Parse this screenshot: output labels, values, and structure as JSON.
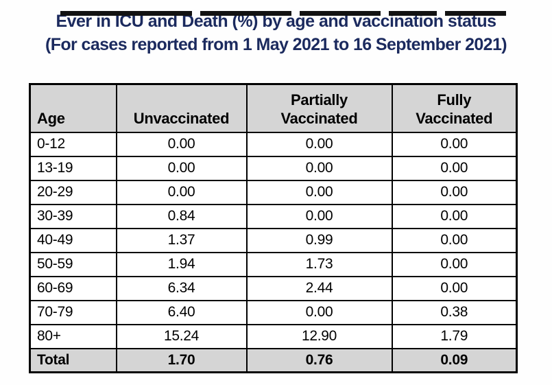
{
  "title": "Ever in ICU and Death (%) by age and vaccination status",
  "subtitle": "(For cases reported from 1 May 2021 to 16 September 2021)",
  "colors": {
    "title_navy": "#1b2a5e",
    "header_bg": "#d5d5d5",
    "border": "#000000",
    "top_bar": "#121212"
  },
  "table": {
    "headers": [
      [
        "Age"
      ],
      [
        "Unvaccinated"
      ],
      [
        "Partially",
        "Vaccinated"
      ],
      [
        "Fully",
        "Vaccinated"
      ]
    ],
    "rows": [
      [
        "0-12",
        "0.00",
        "0.00",
        "0.00"
      ],
      [
        "13-19",
        "0.00",
        "0.00",
        "0.00"
      ],
      [
        "20-29",
        "0.00",
        "0.00",
        "0.00"
      ],
      [
        "30-39",
        "0.84",
        "0.00",
        "0.00"
      ],
      [
        "40-49",
        "1.37",
        "0.99",
        "0.00"
      ],
      [
        "50-59",
        "1.94",
        "1.73",
        "0.00"
      ],
      [
        "60-69",
        "6.34",
        "2.44",
        "0.00"
      ],
      [
        "70-79",
        "6.40",
        "0.00",
        "0.38"
      ],
      [
        "80+",
        "15.24",
        "12.90",
        "1.79"
      ]
    ],
    "total": [
      "Total",
      "1.70",
      "0.76",
      "0.09"
    ]
  },
  "chart_data": {
    "type": "table",
    "title": "Ever in ICU and Death (%) by age and vaccination status",
    "subtitle": "(For cases reported from 1 May 2021 to 16 September 2021)",
    "categories": [
      "0-12",
      "13-19",
      "20-29",
      "30-39",
      "40-49",
      "50-59",
      "60-69",
      "70-79",
      "80+",
      "Total"
    ],
    "series": [
      {
        "name": "Unvaccinated",
        "values": [
          0.0,
          0.0,
          0.0,
          0.84,
          1.37,
          1.94,
          6.34,
          6.4,
          15.24,
          1.7
        ]
      },
      {
        "name": "Partially Vaccinated",
        "values": [
          0.0,
          0.0,
          0.0,
          0.0,
          0.99,
          1.73,
          2.44,
          0.0,
          12.9,
          0.76
        ]
      },
      {
        "name": "Fully Vaccinated",
        "values": [
          0.0,
          0.0,
          0.0,
          0.0,
          0.0,
          0.0,
          0.0,
          0.38,
          1.79,
          0.09
        ]
      }
    ],
    "unit": "percent"
  }
}
